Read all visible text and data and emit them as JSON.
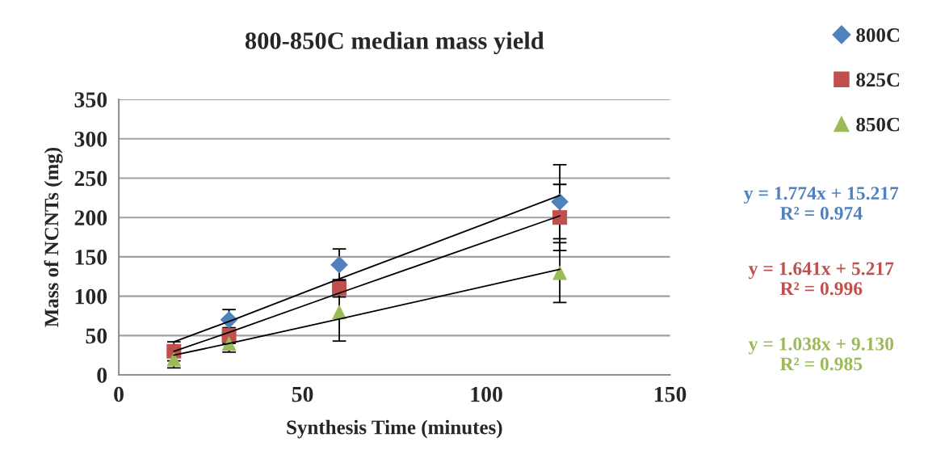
{
  "chart_data": {
    "type": "scatter",
    "title": "800-850C median mass yield",
    "xlabel": "Synthesis Time (minutes)",
    "ylabel": "Mass of NCNTs (mg)",
    "x": [
      15,
      30,
      60,
      120
    ],
    "series": [
      {
        "name": "800C",
        "color": "#4f81bd",
        "marker": "diamond",
        "values": [
          null,
          70,
          140,
          220
        ],
        "errors": [
          null,
          13,
          20,
          47
        ]
      },
      {
        "name": "825C",
        "color": "#c0504d",
        "marker": "square",
        "values": [
          30,
          50,
          110,
          200
        ],
        "errors": [
          12,
          10,
          11,
          42
        ]
      },
      {
        "name": "850C",
        "color": "#9bbb59",
        "marker": "triangle",
        "values": [
          20,
          40,
          80,
          130
        ],
        "errors": [
          11,
          11,
          37,
          38
        ]
      },
      {
        "type": "line",
        "color": "#000000",
        "values": [
          42,
          68,
          122,
          228
        ]
      },
      {
        "type": "line",
        "color": "#000000",
        "values": [
          30,
          54,
          104,
          202
        ]
      },
      {
        "type": "line",
        "color": "#000000",
        "values": [
          25,
          40,
          71,
          134
        ]
      }
    ],
    "annotations": [
      "y = 1.774x + 15.217\nR² = 0.974",
      "y = 1.641x + 5.217\nR² = 0.996",
      "y = 1.038x + 9.130\nR² = 0.985"
    ],
    "xlim": [
      0,
      150
    ],
    "xticks": [
      0,
      50,
      100,
      150
    ],
    "ylim": [
      0,
      350
    ],
    "yticks": [
      0,
      50,
      100,
      150,
      200,
      250,
      300,
      350
    ],
    "grid": "y",
    "legend": "top right"
  }
}
